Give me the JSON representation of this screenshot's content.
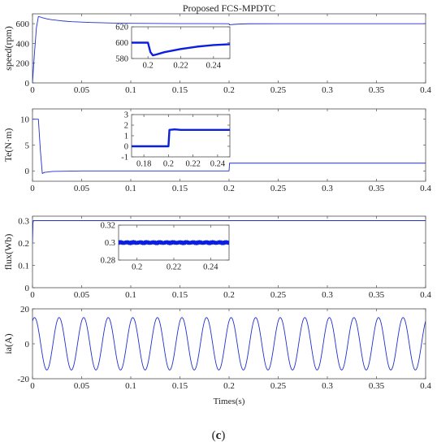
{
  "figure": {
    "title": "Proposed FCS-MPDTC",
    "xlabel": "Times(s)",
    "panel_label_open": "(",
    "panel_label_letter": "c",
    "panel_label_close": ")"
  },
  "colors": {
    "trace": "#1f2fd0",
    "inset_trace": "#0a1fe0",
    "axis": "#4d4d4d"
  },
  "chart_data": [
    {
      "type": "line",
      "name": "speed",
      "ylabel": "speed(rpm)",
      "xlim": [
        0,
        0.4
      ],
      "ylim": [
        0,
        700
      ],
      "xticks": [
        0,
        0.05,
        0.1,
        0.15,
        0.2,
        0.25,
        0.3,
        0.35,
        0.4
      ],
      "yticks": [
        0,
        200,
        400,
        600
      ],
      "x": [
        0,
        0.002,
        0.004,
        0.006,
        0.008,
        0.01,
        0.015,
        0.02,
        0.03,
        0.04,
        0.06,
        0.08,
        0.1,
        0.15,
        0.2,
        0.2003,
        0.202,
        0.205,
        0.21,
        0.22,
        0.25,
        0.3,
        0.35,
        0.4
      ],
      "y": [
        0,
        300,
        560,
        672,
        668,
        660,
        648,
        640,
        628,
        620,
        612,
        607,
        604,
        601,
        600,
        588,
        590,
        593,
        596,
        599,
        600,
        600,
        600,
        600
      ],
      "inset": {
        "xlim": [
          0.19,
          0.25
        ],
        "ylim": [
          580,
          620
        ],
        "xticks": [
          0.2,
          0.22,
          0.24
        ],
        "yticks": [
          580,
          600,
          620
        ],
        "x": [
          0.19,
          0.2,
          0.2015,
          0.203,
          0.205,
          0.21,
          0.22,
          0.23,
          0.24,
          0.25
        ],
        "y": [
          600,
          600,
          588,
          584,
          585,
          588,
          592,
          595,
          597,
          598
        ]
      }
    },
    {
      "type": "line",
      "name": "torque",
      "ylabel": "Te(N·m)",
      "xlim": [
        0,
        0.4
      ],
      "ylim": [
        -2,
        12
      ],
      "xticks": [
        0,
        0.05,
        0.1,
        0.15,
        0.2,
        0.25,
        0.3,
        0.35,
        0.4
      ],
      "yticks": [
        0,
        5,
        10
      ],
      "x": [
        0,
        0.001,
        0.006,
        0.008,
        0.01,
        0.012,
        0.02,
        0.05,
        0.1,
        0.15,
        0.2,
        0.2005,
        0.203,
        0.25,
        0.3,
        0.35,
        0.4
      ],
      "y": [
        10,
        10,
        10,
        4,
        -0.5,
        -0.3,
        -0.1,
        0,
        0,
        0,
        0,
        1.5,
        1.5,
        1.5,
        1.5,
        1.5,
        1.5
      ],
      "inset": {
        "xlim": [
          0.17,
          0.25
        ],
        "ylim": [
          -1,
          3
        ],
        "xticks": [
          0.18,
          0.2,
          0.22,
          0.24
        ],
        "yticks": [
          -1,
          0,
          1,
          2,
          3
        ],
        "x": [
          0.17,
          0.18,
          0.19,
          0.2,
          0.2008,
          0.205,
          0.21,
          0.22,
          0.23,
          0.24,
          0.25
        ],
        "y": [
          0,
          0,
          0,
          0,
          1.55,
          1.6,
          1.55,
          1.55,
          1.55,
          1.55,
          1.55
        ]
      }
    },
    {
      "type": "line",
      "name": "flux",
      "ylabel": "flux(Wb)",
      "xlim": [
        0,
        0.4
      ],
      "ylim": [
        0,
        0.32
      ],
      "xticks": [
        0,
        0.05,
        0.1,
        0.15,
        0.2,
        0.25,
        0.3,
        0.35,
        0.4
      ],
      "yticks": [
        0,
        0.1,
        0.2,
        0.3
      ],
      "x": [
        0,
        0.0005,
        0.001,
        0.002,
        0.05,
        0.1,
        0.15,
        0.2,
        0.25,
        0.3,
        0.35,
        0.4
      ],
      "y": [
        0.2,
        0.29,
        0.3,
        0.3,
        0.3,
        0.3,
        0.3,
        0.3,
        0.3,
        0.3,
        0.3,
        0.3
      ],
      "inset": {
        "xlim": [
          0.19,
          0.25
        ],
        "ylim": [
          0.28,
          0.32
        ],
        "xticks": [
          0.2,
          0.22,
          0.24
        ],
        "yticks": [
          0.28,
          0.3,
          0.32
        ],
        "x": [
          0.19,
          0.25
        ],
        "y": [
          0.3,
          0.3
        ],
        "ripple": 0.002
      }
    },
    {
      "type": "line",
      "name": "phase-current",
      "ylabel": "ia(A)",
      "xlim": [
        0,
        0.4
      ],
      "ylim": [
        -20,
        20
      ],
      "xticks": [
        0,
        0.05,
        0.1,
        0.15,
        0.2,
        0.25,
        0.3,
        0.35,
        0.4
      ],
      "yticks": [
        -20,
        0,
        20
      ],
      "amplitude": 15,
      "frequency_hz": 40,
      "phase_deg": 60
    }
  ]
}
